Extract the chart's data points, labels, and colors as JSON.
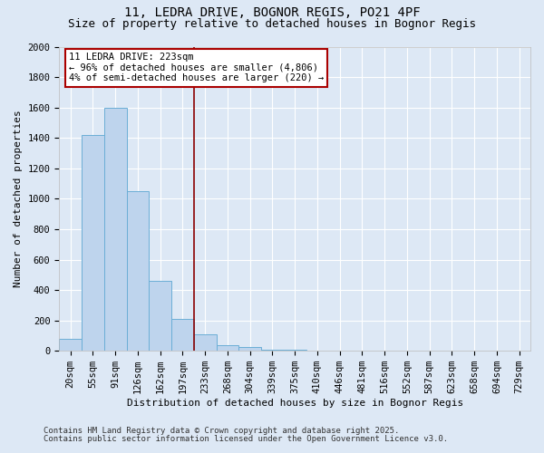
{
  "title1": "11, LEDRA DRIVE, BOGNOR REGIS, PO21 4PF",
  "title2": "Size of property relative to detached houses in Bognor Regis",
  "xlabel": "Distribution of detached houses by size in Bognor Regis",
  "ylabel": "Number of detached properties",
  "categories": [
    "20sqm",
    "55sqm",
    "91sqm",
    "126sqm",
    "162sqm",
    "197sqm",
    "233sqm",
    "268sqm",
    "304sqm",
    "339sqm",
    "375sqm",
    "410sqm",
    "446sqm",
    "481sqm",
    "516sqm",
    "552sqm",
    "587sqm",
    "623sqm",
    "658sqm",
    "694sqm",
    "729sqm"
  ],
  "values": [
    80,
    1420,
    1600,
    1050,
    460,
    210,
    110,
    40,
    25,
    10,
    5,
    0,
    0,
    0,
    0,
    0,
    0,
    0,
    0,
    0,
    0
  ],
  "bar_color": "#bed4ed",
  "bar_edge_color": "#6baed6",
  "red_line_x": 5.5,
  "annotation_line1": "11 LEDRA DRIVE: 223sqm",
  "annotation_line2": "← 96% of detached houses are smaller (4,806)",
  "annotation_line3": "4% of semi-detached houses are larger (220) →",
  "annotation_box_color": "#ffffff",
  "annotation_box_edge_color": "#aa0000",
  "ylim": [
    0,
    2000
  ],
  "yticks": [
    0,
    200,
    400,
    600,
    800,
    1000,
    1200,
    1400,
    1600,
    1800,
    2000
  ],
  "footnote1": "Contains HM Land Registry data © Crown copyright and database right 2025.",
  "footnote2": "Contains public sector information licensed under the Open Government Licence v3.0.",
  "bg_color": "#dde8f5",
  "plot_bg_color": "#dde8f5",
  "title_fontsize": 10,
  "subtitle_fontsize": 9,
  "axis_label_fontsize": 8,
  "tick_fontsize": 7.5,
  "annotation_fontsize": 7.5,
  "footnote_fontsize": 6.5
}
